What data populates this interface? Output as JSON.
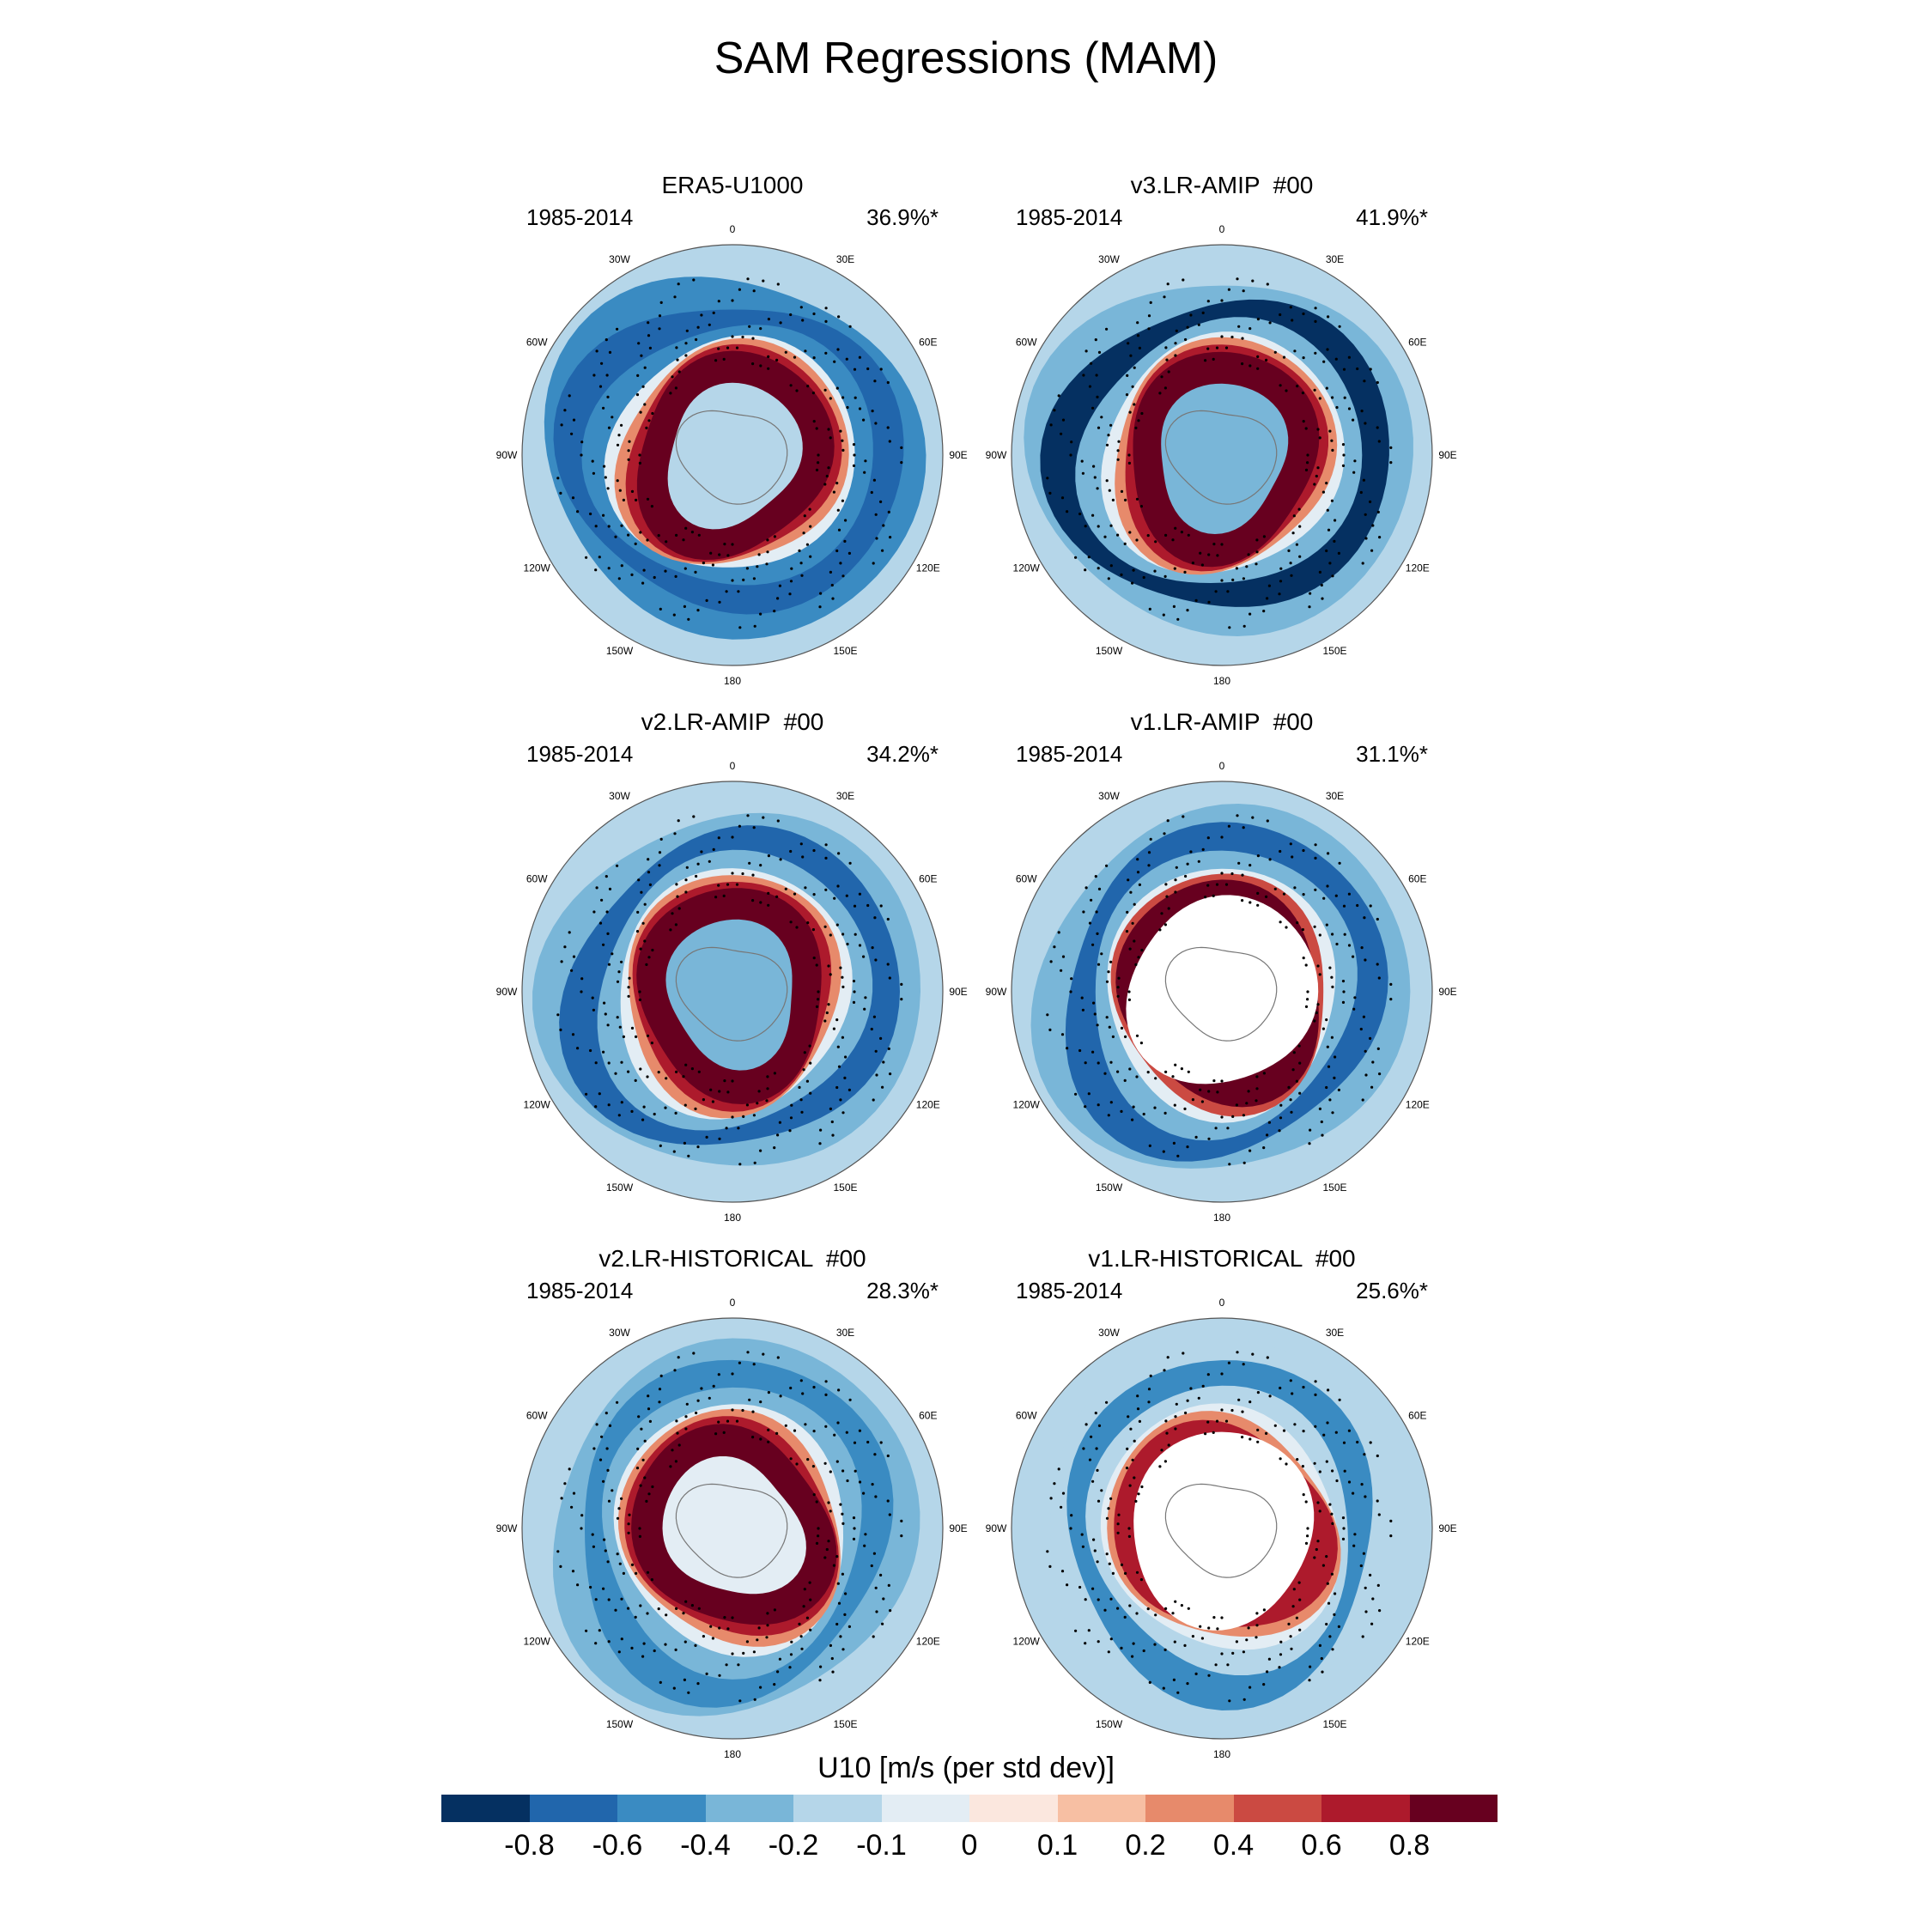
{
  "title": "SAM Regressions (MAM)",
  "panels": [
    {
      "title": "ERA5-U1000",
      "period": "1985-2014",
      "variance": "36.9%*"
    },
    {
      "title": "v3.LR-AMIP  #00",
      "period": "1985-2014",
      "variance": "41.9%*"
    },
    {
      "title": "v2.LR-AMIP  #00",
      "period": "1985-2014",
      "variance": "34.2%*"
    },
    {
      "title": "v1.LR-AMIP  #00",
      "period": "1985-2014",
      "variance": "31.1%*"
    },
    {
      "title": "v2.LR-HISTORICAL  #00",
      "period": "1985-2014",
      "variance": "28.3%*"
    },
    {
      "title": "v1.LR-HISTORICAL  #00",
      "period": "1985-2014",
      "variance": "25.6%*"
    }
  ],
  "longitude_labels": [
    "0",
    "30E",
    "60E",
    "90E",
    "120E",
    "150E",
    "180",
    "150W",
    "120W",
    "90W",
    "60W",
    "30W"
  ],
  "colorbar": {
    "title": "U10 [m/s (per std dev)]",
    "labels": [
      "-0.8",
      "-0.6",
      "-0.4",
      "-0.2",
      "-0.1",
      "0",
      "0.1",
      "0.2",
      "0.4",
      "0.6",
      "0.8"
    ],
    "colors": [
      "#053061",
      "#2166ac",
      "#3a8bc2",
      "#79b6d8",
      "#b5d6e9",
      "#e3edf4",
      "#fbe7de",
      "#f7bfa3",
      "#e78a6b",
      "#cb4a42",
      "#ad1a2c",
      "#67001f"
    ]
  }
}
